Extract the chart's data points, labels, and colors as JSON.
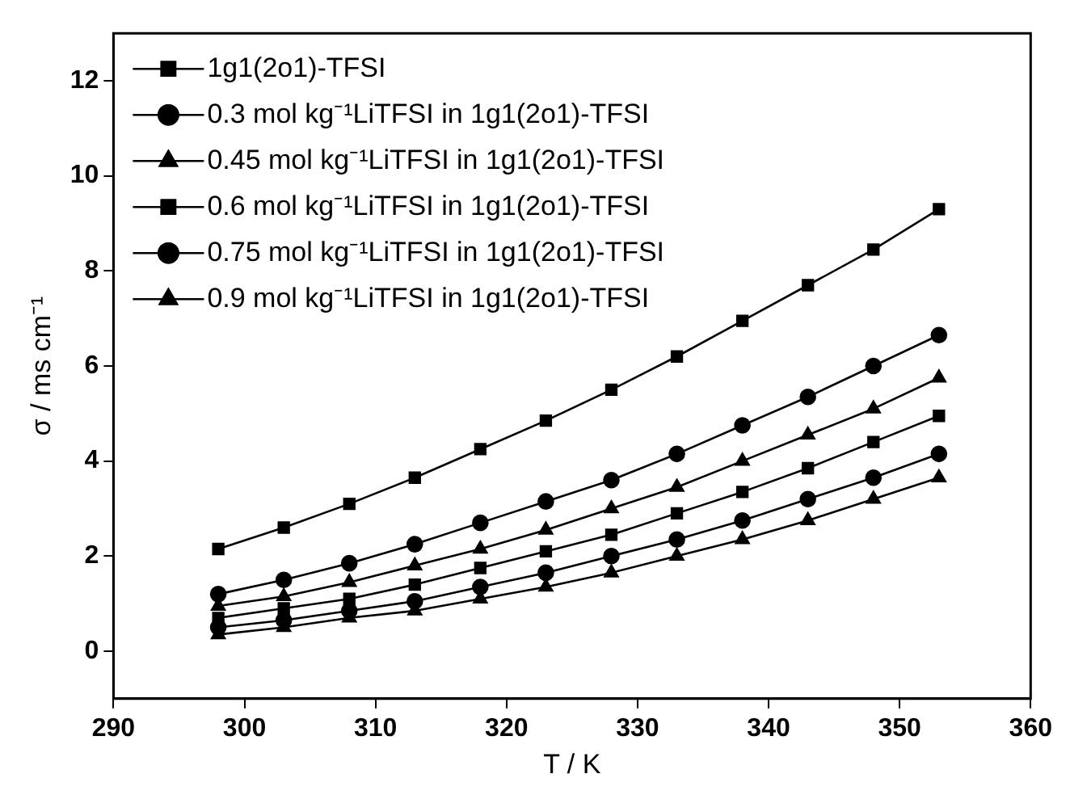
{
  "chart_data": {
    "type": "line",
    "xlabel": "T / K",
    "ylabel": "σ / ms cm⁻¹",
    "x": [
      298,
      303,
      308,
      313,
      318,
      323,
      328,
      333,
      338,
      343,
      348,
      353
    ],
    "xlim": [
      290,
      360
    ],
    "xticks": [
      290,
      300,
      310,
      320,
      330,
      340,
      350,
      360
    ],
    "ylim": [
      -1,
      13
    ],
    "yticks": [
      0,
      2,
      4,
      6,
      8,
      10,
      12
    ],
    "grid": false,
    "legend": "top left",
    "line_style": "solid",
    "series": [
      {
        "name": "1g1(2o1)-TFSI",
        "color": "#000000",
        "marker": "square",
        "values": [
          2.15,
          2.6,
          3.1,
          3.65,
          4.25,
          4.85,
          5.5,
          6.2,
          6.95,
          7.7,
          8.45,
          9.3
        ]
      },
      {
        "name": "0.3 mol kg⁻¹LiTFSI in 1g1(2o1)-TFSI",
        "color": "#000000",
        "marker": "circle",
        "values": [
          1.2,
          1.5,
          1.85,
          2.25,
          2.7,
          3.15,
          3.6,
          4.15,
          4.75,
          5.35,
          6.0,
          6.65
        ]
      },
      {
        "name": "0.45 mol kg⁻¹LiTFSI in 1g1(2o1)-TFSI",
        "color": "#000000",
        "marker": "triangle",
        "values": [
          0.95,
          1.15,
          1.45,
          1.8,
          2.15,
          2.55,
          3.0,
          3.45,
          4.0,
          4.55,
          5.1,
          5.75
        ]
      },
      {
        "name": "0.6 mol kg⁻¹LiTFSI in 1g1(2o1)-TFSI",
        "color": "#000000",
        "marker": "square",
        "values": [
          0.7,
          0.9,
          1.1,
          1.4,
          1.75,
          2.1,
          2.45,
          2.9,
          3.35,
          3.85,
          4.4,
          4.95
        ]
      },
      {
        "name": "0.75 mol kg⁻¹LiTFSI in 1g1(2o1)-TFSI",
        "color": "#000000",
        "marker": "circle",
        "values": [
          0.5,
          0.65,
          0.85,
          1.05,
          1.35,
          1.65,
          2.0,
          2.35,
          2.75,
          3.2,
          3.65,
          4.15
        ]
      },
      {
        "name": "0.9 mol kg⁻¹LiTFSI in 1g1(2o1)-TFSI",
        "color": "#000000",
        "marker": "triangle",
        "values": [
          0.35,
          0.5,
          0.7,
          0.85,
          1.1,
          1.35,
          1.65,
          2.0,
          2.35,
          2.75,
          3.2,
          3.65
        ]
      }
    ]
  }
}
